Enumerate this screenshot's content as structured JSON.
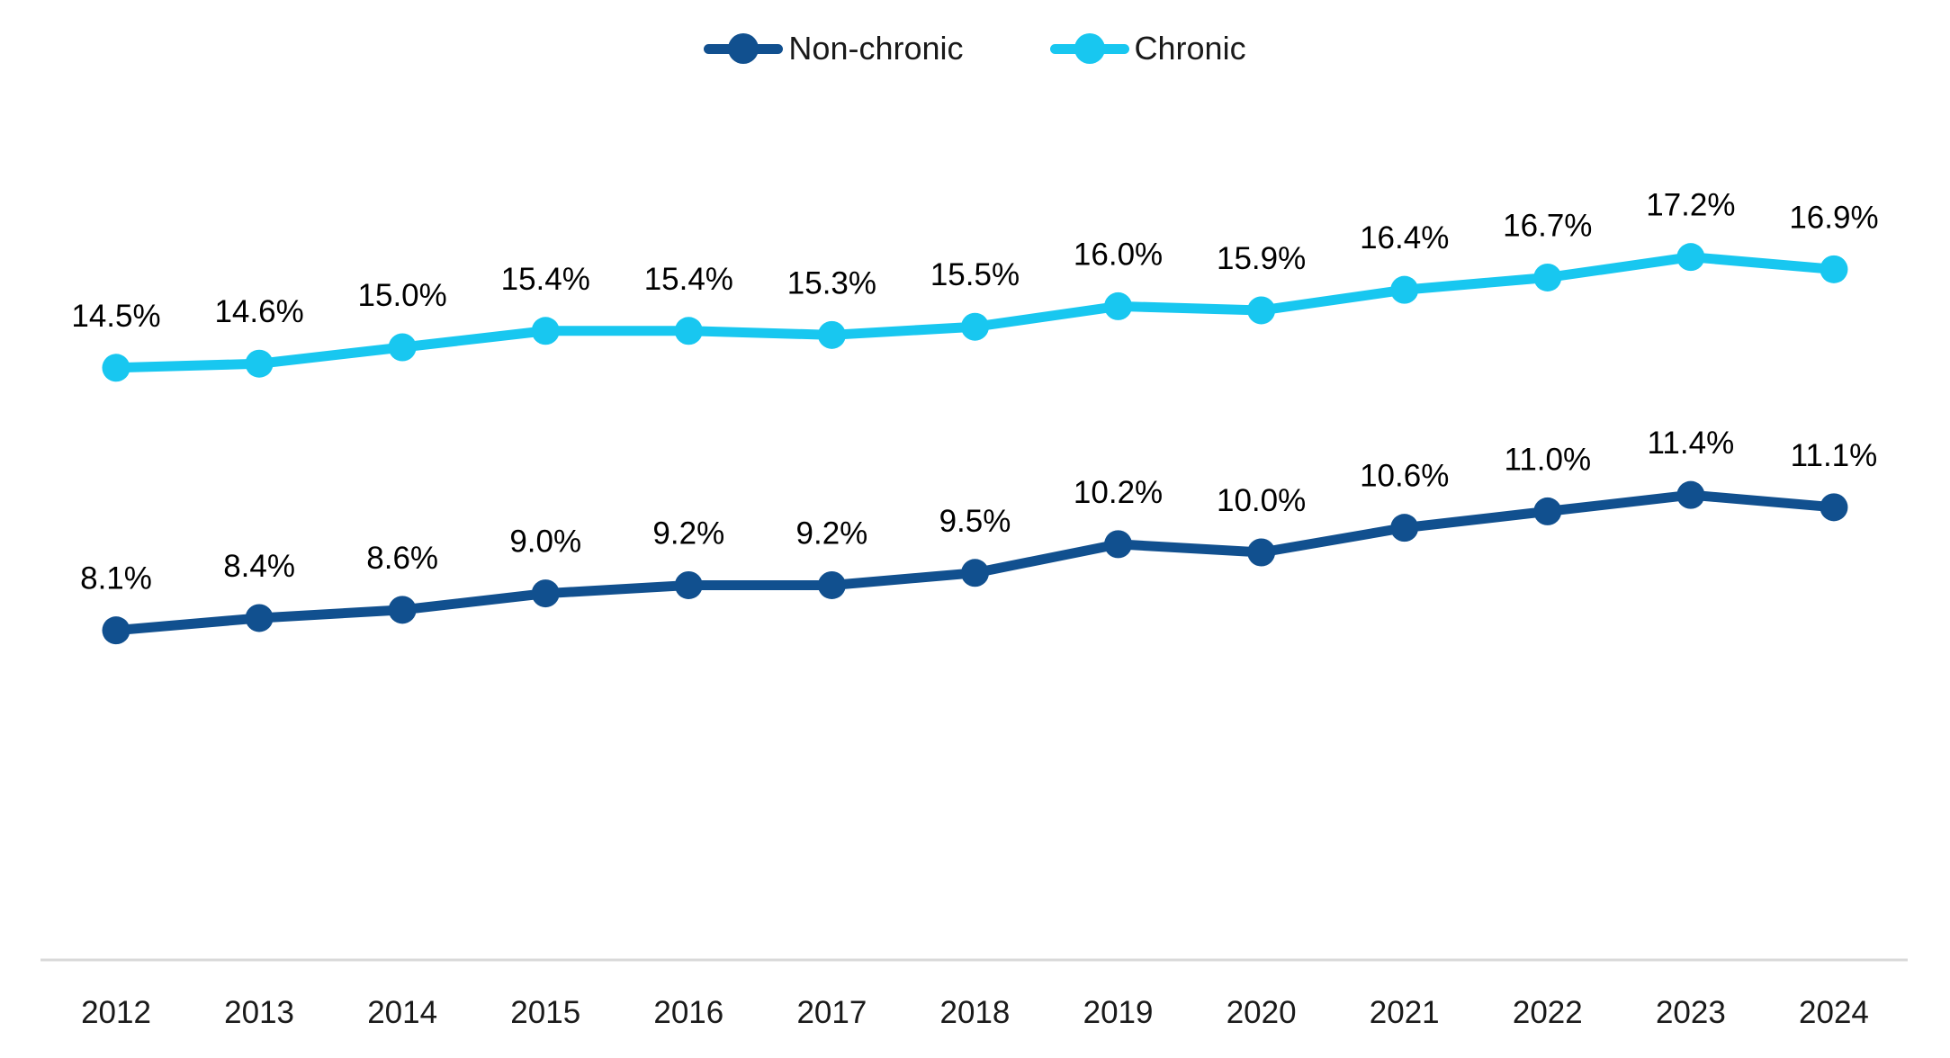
{
  "chart_data": {
    "type": "line",
    "title": "",
    "xlabel": "",
    "ylabel": "",
    "x": [
      "2012",
      "2013",
      "2014",
      "2015",
      "2016",
      "2017",
      "2018",
      "2019",
      "2020",
      "2021",
      "2022",
      "2023",
      "2024"
    ],
    "series": [
      {
        "name": "Non-chronic",
        "color": "#11508F",
        "values": [
          8.1,
          8.4,
          8.6,
          9.0,
          9.2,
          9.2,
          9.5,
          10.2,
          10.0,
          10.6,
          11.0,
          11.4,
          11.1
        ],
        "labels": [
          "8.1%",
          "8.4%",
          "8.6%",
          "9.0%",
          "9.2%",
          "9.2%",
          "9.5%",
          "10.2%",
          "10.0%",
          "10.6%",
          "11.0%",
          "11.4%",
          "11.1%"
        ]
      },
      {
        "name": "Chronic",
        "color": "#18C7F0",
        "values": [
          14.5,
          14.6,
          15.0,
          15.4,
          15.4,
          15.3,
          15.5,
          16.0,
          15.9,
          16.4,
          16.7,
          17.2,
          16.9
        ],
        "labels": [
          "14.5%",
          "14.6%",
          "15.0%",
          "15.4%",
          "15.4%",
          "15.3%",
          "15.5%",
          "16.0%",
          "15.9%",
          "16.4%",
          "16.7%",
          "17.2%",
          "16.9%"
        ]
      }
    ],
    "value_suffix": "%",
    "data_labels_visible": true,
    "legend_position": "top-center",
    "grid": false,
    "y_axis_visible": false,
    "ylim": [
      0,
      21.5
    ],
    "axis_line_color": "#D9D9D9",
    "text_color": "#1A1A1A",
    "background_color": "#FFFFFF"
  }
}
